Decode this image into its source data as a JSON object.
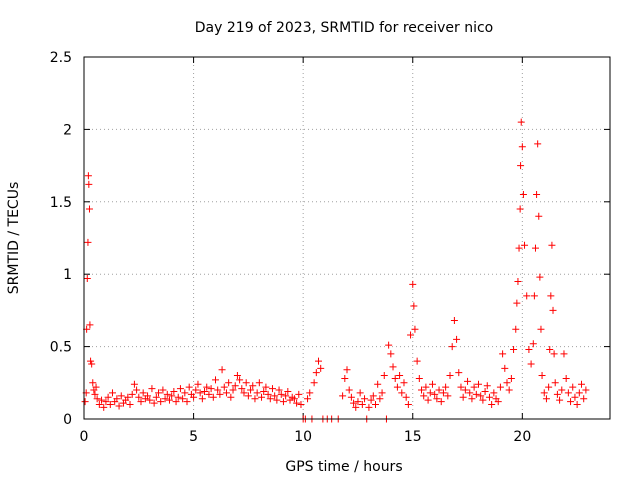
{
  "chart_data": {
    "type": "scatter",
    "title": "Day 219 of 2023, SRMTID for receiver nico",
    "xlabel": "GPS time / hours",
    "ylabel": "SRMTID / TECUs",
    "xlim": [
      0,
      24
    ],
    "ylim": [
      0,
      2.5
    ],
    "x_ticks": [
      0,
      5,
      10,
      15,
      20
    ],
    "x_tick_labels": [
      "0",
      "5",
      "10",
      "15",
      "20"
    ],
    "y_ticks": [
      0,
      0.5,
      1,
      1.5,
      2,
      2.5
    ],
    "y_tick_labels": [
      "0",
      "0.5",
      "1",
      "1.5",
      "2",
      "2.5"
    ],
    "grid": true,
    "marker": "+",
    "color": "#ff0000",
    "series": [
      {
        "name": "SRMTID",
        "points": [
          [
            0.05,
            0.12
          ],
          [
            0.1,
            0.18
          ],
          [
            0.12,
            0.62
          ],
          [
            0.15,
            0.97
          ],
          [
            0.18,
            1.22
          ],
          [
            0.2,
            1.68
          ],
          [
            0.22,
            1.62
          ],
          [
            0.25,
            1.45
          ],
          [
            0.27,
            0.65
          ],
          [
            0.3,
            0.4
          ],
          [
            0.35,
            0.38
          ],
          [
            0.4,
            0.25
          ],
          [
            0.45,
            0.2
          ],
          [
            0.5,
            0.17
          ],
          [
            0.55,
            0.22
          ],
          [
            0.6,
            0.14
          ],
          [
            0.7,
            0.1
          ],
          [
            0.8,
            0.13
          ],
          [
            0.9,
            0.08
          ],
          [
            1.0,
            0.12
          ],
          [
            1.1,
            0.15
          ],
          [
            1.2,
            0.1
          ],
          [
            1.3,
            0.18
          ],
          [
            1.4,
            0.12
          ],
          [
            1.5,
            0.14
          ],
          [
            1.6,
            0.09
          ],
          [
            1.7,
            0.16
          ],
          [
            1.8,
            0.11
          ],
          [
            1.9,
            0.13
          ],
          [
            2.0,
            0.15
          ],
          [
            2.1,
            0.1
          ],
          [
            2.2,
            0.17
          ],
          [
            2.3,
            0.24
          ],
          [
            2.4,
            0.2
          ],
          [
            2.5,
            0.15
          ],
          [
            2.6,
            0.12
          ],
          [
            2.7,
            0.18
          ],
          [
            2.8,
            0.14
          ],
          [
            2.9,
            0.16
          ],
          [
            3.0,
            0.13
          ],
          [
            3.1,
            0.21
          ],
          [
            3.2,
            0.11
          ],
          [
            3.3,
            0.15
          ],
          [
            3.4,
            0.18
          ],
          [
            3.5,
            0.12
          ],
          [
            3.6,
            0.2
          ],
          [
            3.7,
            0.14
          ],
          [
            3.8,
            0.17
          ],
          [
            3.9,
            0.13
          ],
          [
            4.0,
            0.16
          ],
          [
            4.1,
            0.19
          ],
          [
            4.2,
            0.12
          ],
          [
            4.3,
            0.15
          ],
          [
            4.4,
            0.21
          ],
          [
            4.5,
            0.14
          ],
          [
            4.6,
            0.18
          ],
          [
            4.7,
            0.12
          ],
          [
            4.8,
            0.22
          ],
          [
            4.9,
            0.17
          ],
          [
            5.0,
            0.15
          ],
          [
            5.1,
            0.2
          ],
          [
            5.2,
            0.24
          ],
          [
            5.3,
            0.18
          ],
          [
            5.4,
            0.14
          ],
          [
            5.5,
            0.19
          ],
          [
            5.6,
            0.22
          ],
          [
            5.7,
            0.17
          ],
          [
            5.8,
            0.21
          ],
          [
            5.9,
            0.15
          ],
          [
            6.0,
            0.27
          ],
          [
            6.1,
            0.2
          ],
          [
            6.2,
            0.17
          ],
          [
            6.3,
            0.34
          ],
          [
            6.4,
            0.22
          ],
          [
            6.5,
            0.18
          ],
          [
            6.6,
            0.25
          ],
          [
            6.7,
            0.15
          ],
          [
            6.8,
            0.2
          ],
          [
            6.9,
            0.23
          ],
          [
            7.0,
            0.3
          ],
          [
            7.1,
            0.27
          ],
          [
            7.2,
            0.21
          ],
          [
            7.3,
            0.18
          ],
          [
            7.4,
            0.25
          ],
          [
            7.5,
            0.16
          ],
          [
            7.6,
            0.2
          ],
          [
            7.7,
            0.23
          ],
          [
            7.8,
            0.14
          ],
          [
            7.9,
            0.18
          ],
          [
            8.0,
            0.25
          ],
          [
            8.1,
            0.15
          ],
          [
            8.2,
            0.19
          ],
          [
            8.3,
            0.22
          ],
          [
            8.4,
            0.17
          ],
          [
            8.5,
            0.14
          ],
          [
            8.6,
            0.21
          ],
          [
            8.7,
            0.16
          ],
          [
            8.8,
            0.13
          ],
          [
            8.9,
            0.2
          ],
          [
            9.0,
            0.17
          ],
          [
            9.1,
            0.12
          ],
          [
            9.2,
            0.16
          ],
          [
            9.3,
            0.19
          ],
          [
            9.4,
            0.13
          ],
          [
            9.5,
            0.15
          ],
          [
            9.6,
            0.14
          ],
          [
            9.7,
            0.11
          ],
          [
            9.8,
            0.17
          ],
          [
            9.9,
            0.1
          ],
          [
            10.0,
            0.0
          ],
          [
            10.1,
            0.0
          ],
          [
            10.2,
            0.14
          ],
          [
            10.3,
            0.18
          ],
          [
            10.4,
            0.0
          ],
          [
            10.5,
            0.25
          ],
          [
            10.6,
            0.32
          ],
          [
            10.7,
            0.4
          ],
          [
            10.8,
            0.35
          ],
          [
            10.9,
            0.0
          ],
          [
            11.1,
            0.0
          ],
          [
            11.3,
            0.0
          ],
          [
            11.6,
            0.0
          ],
          [
            11.8,
            0.16
          ],
          [
            11.9,
            0.28
          ],
          [
            12.0,
            0.34
          ],
          [
            12.1,
            0.2
          ],
          [
            12.2,
            0.15
          ],
          [
            12.3,
            0.11
          ],
          [
            12.4,
            0.08
          ],
          [
            12.5,
            0.12
          ],
          [
            12.6,
            0.18
          ],
          [
            12.7,
            0.1
          ],
          [
            12.8,
            0.14
          ],
          [
            12.9,
            0.0
          ],
          [
            13.0,
            0.08
          ],
          [
            13.1,
            0.13
          ],
          [
            13.2,
            0.16
          ],
          [
            13.3,
            0.1
          ],
          [
            13.4,
            0.24
          ],
          [
            13.5,
            0.14
          ],
          [
            13.6,
            0.18
          ],
          [
            13.7,
            0.3
          ],
          [
            13.8,
            0.0
          ],
          [
            13.9,
            0.51
          ],
          [
            14.0,
            0.45
          ],
          [
            14.1,
            0.36
          ],
          [
            14.2,
            0.28
          ],
          [
            14.3,
            0.22
          ],
          [
            14.4,
            0.3
          ],
          [
            14.5,
            0.18
          ],
          [
            14.6,
            0.25
          ],
          [
            14.7,
            0.15
          ],
          [
            14.8,
            0.1
          ],
          [
            14.9,
            0.58
          ],
          [
            15.0,
            0.93
          ],
          [
            15.05,
            0.78
          ],
          [
            15.1,
            0.62
          ],
          [
            15.2,
            0.4
          ],
          [
            15.3,
            0.28
          ],
          [
            15.4,
            0.2
          ],
          [
            15.5,
            0.16
          ],
          [
            15.6,
            0.22
          ],
          [
            15.7,
            0.13
          ],
          [
            15.8,
            0.18
          ],
          [
            15.9,
            0.24
          ],
          [
            16.0,
            0.17
          ],
          [
            16.1,
            0.14
          ],
          [
            16.2,
            0.2
          ],
          [
            16.3,
            0.12
          ],
          [
            16.4,
            0.18
          ],
          [
            16.5,
            0.22
          ],
          [
            16.6,
            0.16
          ],
          [
            16.7,
            0.3
          ],
          [
            16.8,
            0.5
          ],
          [
            16.9,
            0.68
          ],
          [
            17.0,
            0.55
          ],
          [
            17.1,
            0.32
          ],
          [
            17.2,
            0.22
          ],
          [
            17.3,
            0.15
          ],
          [
            17.4,
            0.2
          ],
          [
            17.5,
            0.26
          ],
          [
            17.6,
            0.18
          ],
          [
            17.7,
            0.14
          ],
          [
            17.8,
            0.22
          ],
          [
            17.9,
            0.17
          ],
          [
            18.0,
            0.24
          ],
          [
            18.1,
            0.16
          ],
          [
            18.2,
            0.13
          ],
          [
            18.3,
            0.19
          ],
          [
            18.4,
            0.23
          ],
          [
            18.5,
            0.15
          ],
          [
            18.6,
            0.1
          ],
          [
            18.7,
            0.18
          ],
          [
            18.8,
            0.14
          ],
          [
            18.9,
            0.12
          ],
          [
            19.0,
            0.22
          ],
          [
            19.1,
            0.45
          ],
          [
            19.2,
            0.35
          ],
          [
            19.3,
            0.25
          ],
          [
            19.4,
            0.2
          ],
          [
            19.5,
            0.28
          ],
          [
            19.6,
            0.48
          ],
          [
            19.7,
            0.62
          ],
          [
            19.75,
            0.8
          ],
          [
            19.8,
            0.95
          ],
          [
            19.85,
            1.18
          ],
          [
            19.9,
            1.45
          ],
          [
            19.92,
            1.75
          ],
          [
            19.95,
            2.05
          ],
          [
            20.0,
            1.88
          ],
          [
            20.05,
            1.55
          ],
          [
            20.1,
            1.2
          ],
          [
            20.2,
            0.85
          ],
          [
            20.3,
            0.48
          ],
          [
            20.4,
            0.38
          ],
          [
            20.5,
            0.52
          ],
          [
            20.55,
            0.85
          ],
          [
            20.6,
            1.18
          ],
          [
            20.65,
            1.55
          ],
          [
            20.7,
            1.9
          ],
          [
            20.75,
            1.4
          ],
          [
            20.8,
            0.98
          ],
          [
            20.85,
            0.62
          ],
          [
            20.9,
            0.3
          ],
          [
            21.0,
            0.18
          ],
          [
            21.1,
            0.14
          ],
          [
            21.2,
            0.22
          ],
          [
            21.25,
            0.48
          ],
          [
            21.3,
            0.85
          ],
          [
            21.35,
            1.2
          ],
          [
            21.4,
            0.75
          ],
          [
            21.45,
            0.45
          ],
          [
            21.5,
            0.25
          ],
          [
            21.6,
            0.17
          ],
          [
            21.7,
            0.13
          ],
          [
            21.8,
            0.2
          ],
          [
            21.9,
            0.45
          ],
          [
            22.0,
            0.28
          ],
          [
            22.1,
            0.18
          ],
          [
            22.2,
            0.12
          ],
          [
            22.3,
            0.22
          ],
          [
            22.4,
            0.15
          ],
          [
            22.5,
            0.1
          ],
          [
            22.6,
            0.18
          ],
          [
            22.7,
            0.24
          ],
          [
            22.8,
            0.14
          ],
          [
            22.9,
            0.2
          ]
        ]
      }
    ]
  }
}
